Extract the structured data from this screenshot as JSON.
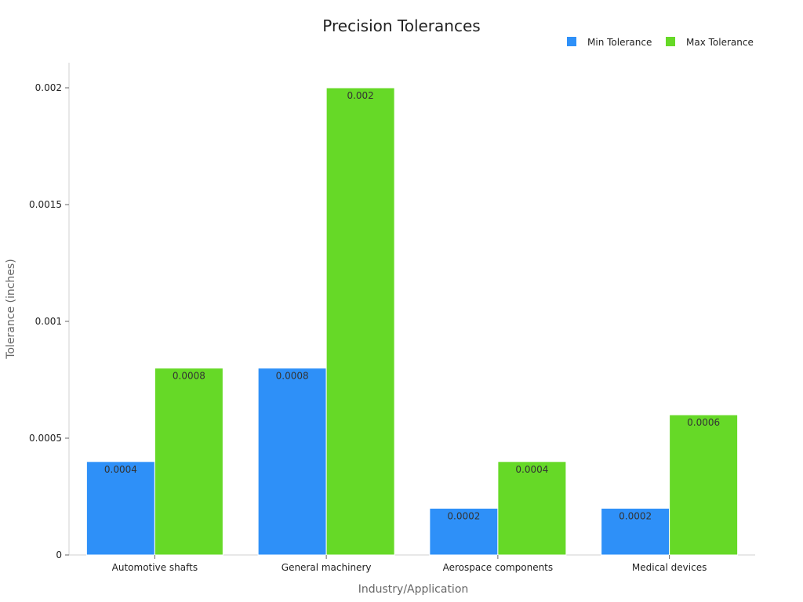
{
  "chart_data": {
    "type": "bar",
    "title": "Precision Tolerances",
    "xlabel": "Industry/Application",
    "ylabel": "Tolerance (inches)",
    "categories": [
      "Automotive shafts",
      "General machinery",
      "Aerospace components",
      "Medical devices"
    ],
    "series": [
      {
        "name": "Min Tolerance",
        "color": "#2e90f8",
        "values": [
          0.0004,
          0.0008,
          0.0002,
          0.0002
        ],
        "labels": [
          "0.0004",
          "0.0008",
          "0.0002",
          "0.0002"
        ]
      },
      {
        "name": "Max Tolerance",
        "color": "#66d927",
        "values": [
          0.0008,
          0.002,
          0.0004,
          0.0006
        ],
        "labels": [
          "0.0008",
          "0.002",
          "0.0004",
          "0.0006"
        ]
      }
    ],
    "ylim": [
      0,
      0.002
    ],
    "yticks": [
      0,
      0.0005,
      0.001,
      0.0015,
      0.002
    ],
    "ytick_labels": [
      "0",
      "0.0005",
      "0.001",
      "0.0015",
      "0.002"
    ],
    "grid": false,
    "legend_position": "top-right"
  }
}
